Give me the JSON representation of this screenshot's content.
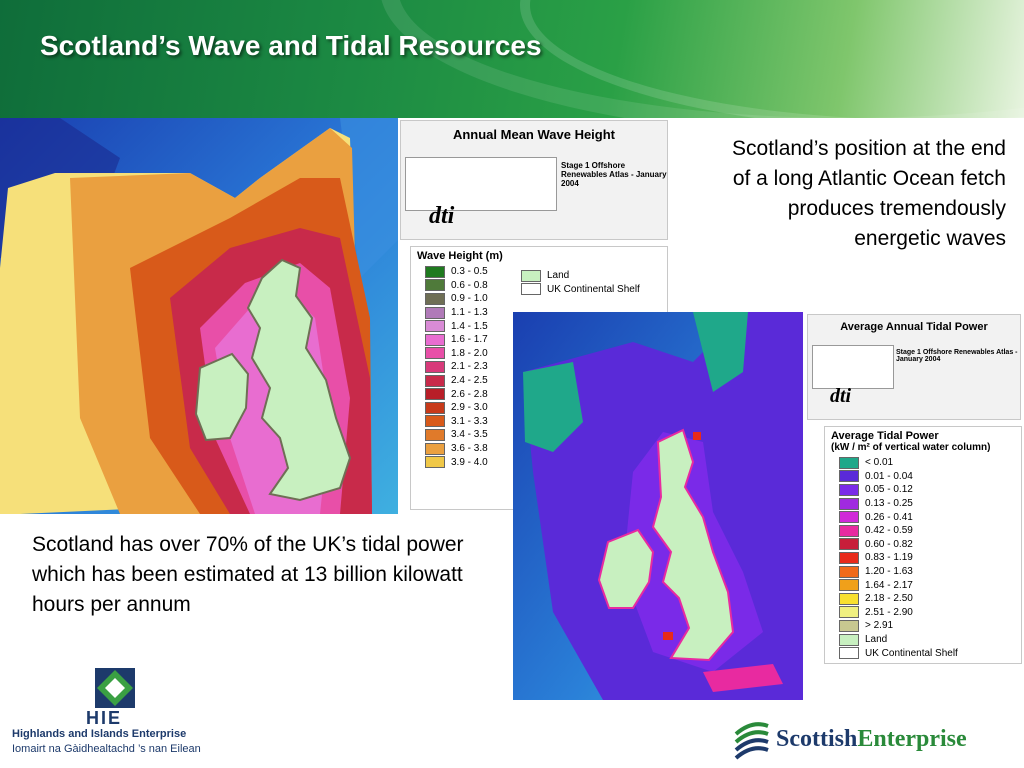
{
  "slide": {
    "title": "Scotland’s Wave and Tidal Resources",
    "text_top_right": "Scotland’s position at the end of a long Atlantic Ocean fetch produces tremendously energetic waves",
    "text_bottom_left": "Scotland has over 70% of the UK’s tidal power which has been estimated at 13 billion kilowatt hours per annum"
  },
  "wave_map": {
    "heading": "Annual Mean Wave Height",
    "atlas": "Stage 1 Offshore Renewables Atlas - January 2004",
    "logo": "dti",
    "legend_title": "Wave Height (m)",
    "legend": [
      {
        "label": "0.3 - 0.5",
        "color": "#1f7a1f"
      },
      {
        "label": "0.6 - 0.8",
        "color": "#4f7a3a"
      },
      {
        "label": "0.9 - 1.0",
        "color": "#6f6f55"
      },
      {
        "label": "1.1 - 1.3",
        "color": "#b07ab8"
      },
      {
        "label": "1.4 - 1.5",
        "color": "#d98bd6"
      },
      {
        "label": "1.6 - 1.7",
        "color": "#e86dd0"
      },
      {
        "label": "1.8 - 2.0",
        "color": "#e84fa8"
      },
      {
        "label": "2.1 - 2.3",
        "color": "#d83a7a"
      },
      {
        "label": "2.4 - 2.5",
        "color": "#c82a4a"
      },
      {
        "label": "2.6 - 2.8",
        "color": "#b81e28"
      },
      {
        "label": "2.9 - 3.0",
        "color": "#c83a1a"
      },
      {
        "label": "3.1 - 3.3",
        "color": "#d85a1a"
      },
      {
        "label": "3.4 - 3.5",
        "color": "#e07a2a"
      },
      {
        "label": "3.6 - 3.8",
        "color": "#eaa040"
      },
      {
        "label": "3.9 - 4.0",
        "color": "#f0c848"
      }
    ],
    "extra_legend": [
      {
        "label": "Land",
        "color": "#c8f0c0"
      },
      {
        "label": "UK Continental Shelf",
        "color": "#ffffff"
      }
    ]
  },
  "tidal_map": {
    "heading": "Average Annual Tidal Power",
    "atlas": "Stage 1 Offshore Renewables Atlas - January 2004",
    "logo": "dti",
    "legend_title_1": "Average Tidal Power",
    "legend_title_2": "(kW / m² of vertical water column)",
    "legend": [
      {
        "label": "< 0.01",
        "color": "#1fa88a"
      },
      {
        "label": "0.01 - 0.04",
        "color": "#5a2ad8"
      },
      {
        "label": "0.05 - 0.12",
        "color": "#7a2ae8"
      },
      {
        "label": "0.13 - 0.25",
        "color": "#a02ae0"
      },
      {
        "label": "0.26 - 0.41",
        "color": "#d02ad8"
      },
      {
        "label": "0.42 - 0.59",
        "color": "#e82aa0"
      },
      {
        "label": "0.60 - 0.82",
        "color": "#c81e3a"
      },
      {
        "label": "0.83 - 1.19",
        "color": "#e82a1a"
      },
      {
        "label": "1.20 - 1.63",
        "color": "#f06a1a"
      },
      {
        "label": "1.64 - 2.17",
        "color": "#f0a01a"
      },
      {
        "label": "2.18 - 2.50",
        "color": "#f8e030"
      },
      {
        "label": "2.51 - 2.90",
        "color": "#f0f080"
      },
      {
        "label": "> 2.91",
        "color": "#c8c890"
      },
      {
        "label": "Land",
        "color": "#c8f0c0"
      },
      {
        "label": "UK Continental Shelf",
        "color": "#ffffff"
      }
    ]
  },
  "logos": {
    "hie_abbrev": "HIE",
    "hie_name": "Highlands and Islands Enterprise",
    "hie_gaelic": "Iomairt na Gàidhealtachd ’s nan Eilean",
    "se_part1": "Scottish",
    "se_part2": "Enterprise"
  },
  "colors": {
    "banner_dark": "#0f6d3a",
    "banner_light": "#7fc66c",
    "hie_navy": "#1d3a6b",
    "hie_green": "#3aa043",
    "se_green": "#2a8a3a",
    "se_navy": "#1d3a6b"
  }
}
